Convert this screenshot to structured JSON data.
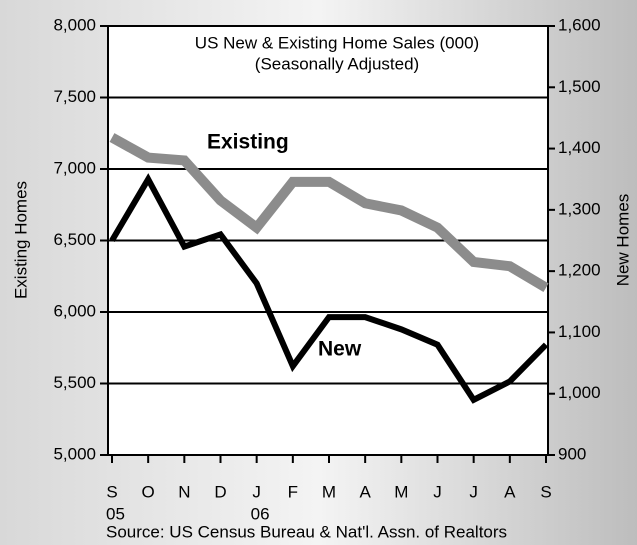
{
  "chart_data": {
    "type": "line",
    "title": "US New & Existing Home Sales (000)",
    "subtitle": "(Seasonally Adjusted)",
    "ylabel": "Existing Homes",
    "y2label": "New Homes",
    "source": "Source:  US Census Bureau & Nat'l. Assn. of Realtors",
    "categories": [
      "S",
      "O",
      "N",
      "D",
      "J",
      "F",
      "M",
      "A",
      "M",
      "J",
      "J",
      "A",
      "S"
    ],
    "category_years": [
      "05",
      null,
      null,
      null,
      "06",
      null,
      null,
      null,
      null,
      null,
      null,
      null,
      null
    ],
    "series": [
      {
        "name": "Existing",
        "color": "#8c8c8c",
        "values": [
          7220,
          7080,
          7060,
          6780,
          6590,
          6910,
          6910,
          6760,
          6710,
          6590,
          6350,
          6320,
          6170
        ]
      },
      {
        "name": "New",
        "color": "#000000",
        "axis": "y2",
        "values": [
          1250,
          1350,
          1240,
          1260,
          1180,
          1045,
          1125,
          1125,
          1105,
          1080,
          990,
          1020,
          1080
        ]
      }
    ],
    "ylim": [
      5000,
      8000
    ],
    "yticks": [
      {
        "value": 5000,
        "label": "5,000"
      },
      {
        "value": 5500,
        "label": "5,500"
      },
      {
        "value": 6000,
        "label": "6,000"
      },
      {
        "value": 6500,
        "label": "6,500"
      },
      {
        "value": 7000,
        "label": "7,000"
      },
      {
        "value": 7500,
        "label": "7,500"
      },
      {
        "value": 8000,
        "label": "8,000"
      }
    ],
    "y2lim": [
      900,
      1600
    ],
    "y2ticks": [
      900,
      {
        "value": 1000,
        "label": "1,000"
      },
      {
        "value": 1100,
        "label": "1,100"
      },
      {
        "value": 1200,
        "label": "1,200"
      },
      {
        "value": 1300,
        "label": "1,300"
      },
      {
        "value": 1400,
        "label": "1,400"
      },
      {
        "value": 1500,
        "label": "1,500"
      },
      {
        "value": 1600,
        "label": "1,600"
      }
    ],
    "grid": true
  }
}
